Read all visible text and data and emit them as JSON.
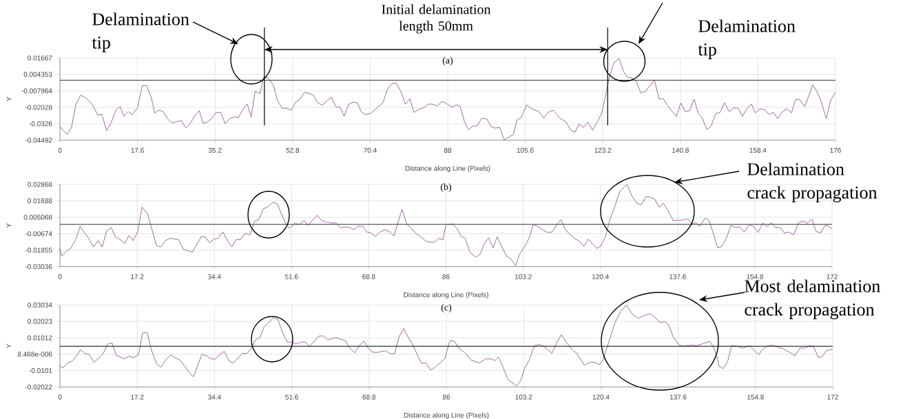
{
  "chart_data": [
    {
      "type": "line",
      "title": "(a)",
      "xlabel": "Distance along Line (Pixels)",
      "ylabel": "Y",
      "xlim": [
        0,
        176
      ],
      "ylim": [
        -0.04492,
        0.01667
      ],
      "xticks": [
        0,
        17.6,
        35.2,
        52.8,
        70.4,
        88,
        105.6,
        123.2,
        140.8,
        158.4,
        176
      ],
      "yticks": [
        -0.04492,
        -0.0326,
        -0.02028,
        -0.007964,
        0.004353,
        0.01667
      ],
      "grid": true,
      "series": [
        {
          "color": "#9e6a9e",
          "x": [
            0,
            1.6,
            2.6,
            3.6,
            4.7,
            5.9,
            7.2,
            8.6,
            9.5,
            10.6,
            11.6,
            12.7,
            13.7,
            14.5,
            15.5,
            16.4,
            17.6,
            18.7,
            19.7,
            20.7,
            21.5,
            22.5,
            23.5,
            24.4,
            25.4,
            26.6,
            27.5,
            28.6,
            29.5,
            30.6,
            31.6,
            32.5,
            33.4,
            34.4,
            35.5,
            36.5,
            37.5,
            38.5,
            39.8,
            40.5,
            41.4,
            42.5,
            43.4,
            44.3,
            45.4,
            46.3,
            47.3,
            48.4,
            49.4,
            50.5,
            51.5,
            52.5,
            53.5,
            54.4,
            55.5,
            56.6,
            57.5,
            58.5,
            59.5,
            60.6,
            61.6,
            62.6,
            63.6,
            64.5,
            65.5,
            66.6,
            67.5,
            68.4,
            69.4,
            70.4,
            71.4,
            72.4,
            73.3,
            74.3,
            75.3,
            76.3,
            77.4,
            78.4,
            79.4,
            80.3,
            81.5,
            82.7,
            83.8,
            84.7,
            85.7,
            86.6,
            87.5,
            89.0,
            90.0,
            90.8,
            91.8,
            92.7,
            93.8,
            94.7,
            95.7,
            96.9,
            97.8,
            98.8,
            99.8,
            100.8,
            101.8,
            102.9,
            103.7,
            104.7,
            105.9,
            107.0,
            108.7,
            109.8,
            110.8,
            111.9,
            113.4,
            114.8,
            115.9,
            116.9,
            117.8,
            118.8,
            119.8,
            120.9,
            122.0,
            122.9,
            123.7,
            124.6,
            125.7,
            126.9,
            127.9,
            128.8,
            129.8,
            130.8,
            131.8,
            132.9,
            133.9,
            134.9,
            136.0,
            136.9,
            137.8,
            138.8,
            139.9,
            140.9,
            141.9,
            142.9,
            143.9,
            144.9,
            145.7,
            146.8,
            147.8,
            148.8,
            149.8,
            150.8,
            151.9,
            152.9,
            153.9,
            154.9,
            155.9,
            156.9,
            157.8,
            158.8,
            159.9,
            160.9,
            161.9,
            162.9,
            163.9,
            165.0,
            166.0,
            167.0,
            168.0,
            169.0,
            170.0,
            170.8,
            171.8,
            172.8,
            173.9,
            174.9,
            176
          ],
          "values": [
            -0.0348,
            -0.0406,
            -0.0357,
            -0.0185,
            -0.0112,
            -0.0134,
            -0.0174,
            -0.0262,
            -0.0254,
            -0.0378,
            -0.0318,
            -0.0224,
            -0.0198,
            -0.0271,
            -0.0235,
            -0.0258,
            -0.0207,
            -0.0041,
            -0.0041,
            -0.0127,
            -0.0245,
            -0.0224,
            -0.0237,
            -0.0288,
            -0.0318,
            -0.031,
            -0.0301,
            -0.0357,
            -0.0327,
            -0.0267,
            -0.0228,
            -0.0323,
            -0.0314,
            -0.0288,
            -0.0241,
            -0.0241,
            -0.0327,
            -0.0288,
            -0.0273,
            -0.028,
            -0.0224,
            -0.0177,
            -0.0277,
            -0.0084,
            -0.0099,
            0.0029,
            0.0012,
            -0.0035,
            -0.0155,
            -0.0213,
            -0.0209,
            -0.0224,
            -0.0164,
            -0.0144,
            -0.0091,
            -0.0099,
            -0.0112,
            -0.017,
            -0.0187,
            -0.0153,
            -0.0127,
            -0.0198,
            -0.0203,
            -0.0271,
            -0.0181,
            -0.0164,
            -0.017,
            -0.0237,
            -0.0258,
            -0.025,
            -0.0224,
            -0.0194,
            -0.0168,
            -0.0069,
            -0.0026,
            -0.0022,
            -0.0086,
            -0.0181,
            -0.0138,
            -0.0241,
            -0.0219,
            -0.0203,
            -0.0177,
            -0.0181,
            -0.0194,
            -0.0159,
            -0.017,
            -0.0203,
            -0.0185,
            -0.0194,
            -0.031,
            -0.037,
            -0.0342,
            -0.0342,
            -0.0284,
            -0.0292,
            -0.0346,
            -0.0359,
            -0.0353,
            -0.0445,
            -0.0428,
            -0.0406,
            -0.0299,
            -0.0278,
            -0.0185,
            -0.0213,
            -0.0235,
            -0.0284,
            -0.0241,
            -0.0224,
            -0.0284,
            -0.031,
            -0.0374,
            -0.0389,
            -0.0327,
            -0.0353,
            -0.0314,
            -0.0374,
            -0.031,
            -0.025,
            -0.0138,
            0.0012,
            0.013,
            0.0163,
            0.0066,
            0.0023,
            0.0017,
            -0.0009,
            -0.0095,
            -0.0084,
            -0.0041,
            0.0001,
            -0.0142,
            -0.0138,
            -0.0185,
            -0.0228,
            -0.0271,
            -0.017,
            -0.0235,
            -0.0228,
            -0.0142,
            -0.025,
            -0.0278,
            -0.037,
            -0.0342,
            -0.025,
            -0.0241,
            -0.017,
            -0.0235,
            -0.0207,
            -0.0209,
            -0.0271,
            -0.0213,
            -0.0177,
            -0.0245,
            -0.0215,
            -0.022,
            -0.0256,
            -0.0241,
            -0.0288,
            -0.0237,
            -0.0213,
            -0.0245,
            -0.0142,
            -0.0149,
            -0.0198,
            -0.0112,
            -0.0035,
            -0.0084,
            -0.0164,
            -0.0288,
            -0.0149,
            -0.0091
          ]
        }
      ],
      "ref_lines": [
        {
          "axis": "y",
          "value": 0,
          "color": "#555555"
        },
        {
          "axis": "x",
          "value": 46.4,
          "color": "#000000"
        },
        {
          "axis": "x",
          "value": 124.3,
          "color": "#000000"
        }
      ],
      "annotations": [
        "Delamination tip",
        "Delamination tip",
        "Initial delamination length 50mm"
      ]
    },
    {
      "type": "line",
      "title": "(b)",
      "xlabel": "Distance along Line (Pixels)",
      "ylabel": "Y",
      "xlim": [
        0,
        172
      ],
      "ylim": [
        -0.03036,
        0.02868
      ],
      "xticks": [
        0,
        17.2,
        34.4,
        51.6,
        68.8,
        86,
        103.2,
        120.4,
        137.6,
        154.8,
        172
      ],
      "yticks": [
        -0.03036,
        -0.01855,
        -0.00674,
        0.005068,
        0.01688,
        0.02868
      ],
      "grid": true,
      "series": [
        {
          "color": "#9e6a9e",
          "x": [
            0,
            0.4,
            1.4,
            2.4,
            3.5,
            4.5,
            5.4,
            6.2,
            7.5,
            8.5,
            9.4,
            10.4,
            11.4,
            12.4,
            13.5,
            14.4,
            15.4,
            16.3,
            17.3,
            18.3,
            19.5,
            20.5,
            21.5,
            22.4,
            23.5,
            24.5,
            25.4,
            26.4,
            27.5,
            28.4,
            29.5,
            30.6,
            31.5,
            32.4,
            33.3,
            34.4,
            35.2,
            36.3,
            37.3,
            38.3,
            39.2,
            40.2,
            41.3,
            42.3,
            43.4,
            44.3,
            45.3,
            46.4,
            47.4,
            48.4,
            49.3,
            50.4,
            51.2,
            52.3,
            53.3,
            54.4,
            55.3,
            56.4,
            57.3,
            58.4,
            59.6,
            60.7,
            61.5,
            62.6,
            63.5,
            64.5,
            65.5,
            66.4,
            67.4,
            68.4,
            69.3,
            70.3,
            71.4,
            72.4,
            73.5,
            74.4,
            76.2,
            77.3,
            78.3,
            79.2,
            80.4,
            81.5,
            82.4,
            83.4,
            84.4,
            85.3,
            86.0,
            87.5,
            88.4,
            89.4,
            90.3,
            91.3,
            92.6,
            93.6,
            94.5,
            95.5,
            96.5,
            97.4,
            98.4,
            99.5,
            100.5,
            101.5,
            102.4,
            103.5,
            104.5,
            105.4,
            106.4,
            107.7,
            108.7,
            109.6,
            110.6,
            111.6,
            112.5,
            113.5,
            114.6,
            115.7,
            116.7,
            117.7,
            118.7,
            119.6,
            120.4,
            121.5,
            122.5,
            123.6,
            124.7,
            126.3,
            127.5,
            128.6,
            129.5,
            130.6,
            131.6,
            132.5,
            133.5,
            134.4,
            135.5,
            136.6,
            137.6,
            138.7,
            139.8,
            140.8,
            141.6,
            142.5,
            143.7,
            144.5,
            145.5,
            146.5,
            147.4,
            148.3,
            149.5,
            150.5,
            151.4,
            152.4,
            153.6,
            154.5,
            155.5,
            156.6,
            157.5,
            158.5,
            159.4,
            160.4,
            161.4,
            162.3,
            163.4,
            164.6,
            165.7,
            166.5,
            167.5,
            168.4,
            169.4,
            170.6,
            172.0
          ],
          "values": [
            -0.0173,
            -0.0229,
            -0.0194,
            -0.0173,
            -0.0111,
            -0.0014,
            -0.0059,
            -0.009,
            -0.0163,
            -0.0117,
            -0.0163,
            -0.0049,
            -0.0022,
            -0.0092,
            -0.0111,
            -0.0138,
            -0.008,
            -0.0117,
            -0.0055,
            0.0123,
            0.0076,
            -0.0038,
            -0.0152,
            -0.0163,
            -0.0117,
            -0.0101,
            -0.0105,
            -0.0109,
            -0.0179,
            -0.0188,
            -0.02,
            -0.0138,
            -0.0088,
            -0.009,
            -0.0132,
            -0.0105,
            -0.0101,
            -0.0055,
            -0.0117,
            -0.0163,
            -0.0111,
            -0.0109,
            -0.0065,
            -0.0076,
            0.0024,
            0.0034,
            0.0111,
            0.0127,
            0.0158,
            0.0148,
            0.0076,
            -0.0001,
            -0.0028,
            0.0007,
            -0.0001,
            0.0028,
            -0.0009,
            0.0034,
            0.0065,
            0.0024,
            0.0015,
            0.0009,
            0.0011,
            -0.0028,
            -0.0018,
            -0.0022,
            -0.0038,
            -0.0014,
            -0.0014,
            -0.0055,
            -0.0063,
            -0.0086,
            -0.0055,
            -0.0038,
            -0.0055,
            -0.0084,
            0.0107,
            -0.0001,
            -0.0028,
            -0.0063,
            -0.009,
            -0.0121,
            -0.0128,
            -0.0128,
            -0.0101,
            -0.0111,
            -0.0003,
            0.0003,
            -0.0028,
            -0.0086,
            -0.0101,
            -0.02,
            -0.0235,
            -0.0215,
            -0.0142,
            -0.0096,
            -0.0169,
            -0.009,
            -0.0159,
            -0.0229,
            -0.025,
            -0.0297,
            -0.0215,
            -0.0159,
            -0.0101,
            -0.0003,
            -0.0014,
            -0.0043,
            -0.0059,
            -0.0055,
            -0.0007,
            0.0034,
            -0.0034,
            -0.007,
            -0.0101,
            -0.0121,
            -0.0159,
            -0.0107,
            -0.0142,
            -0.0173,
            -0.0159,
            -0.009,
            0.0034,
            0.0127,
            0.0235,
            0.0286,
            0.02,
            0.0148,
            0.0142,
            0.02,
            0.0194,
            0.0179,
            0.0123,
            0.0152,
            0.0096,
            0.0028,
            0.0028,
            0.003,
            0.004,
            0.0003,
            0.0013,
            -0.0014,
            0.0044,
            0.0034,
            -0.0059,
            -0.0169,
            -0.0159,
            -0.0111,
            -0.0007,
            -0.0024,
            -0.0018,
            -0.0055,
            -0.0003,
            -0.0014,
            -0.0059,
            0.0009,
            -0.0018,
            0.0013,
            -0.0024,
            -0.0022,
            -0.0063,
            -0.0055,
            -0.0076,
            0.0013,
            0.0024,
            0.0007,
            0.0038,
            -0.0049,
            -0.0063,
            -0.0003,
            -0.003
          ]
        }
      ],
      "ref_lines": [
        {
          "axis": "y",
          "value": 0,
          "color": "#555555"
        }
      ],
      "annotations": [
        "Delamination crack propagation"
      ]
    },
    {
      "type": "line",
      "title": "(c)",
      "xlabel": "Distance along Line (Pixels)",
      "ylabel": "Y",
      "xlim": [
        0,
        172
      ],
      "ylim": [
        -0.02022,
        0.03034
      ],
      "xticks": [
        0,
        17.2,
        34.4,
        51.6,
        68.8,
        86,
        103.2,
        120.4,
        137.6,
        154.8,
        172
      ],
      "yticks": [
        -0.02022,
        -0.0101,
        {
          "value": 8.468e-06,
          "label": "8.468e-006"
        },
        0.01012,
        0.02023,
        0.03034
      ],
      "grid": true,
      "series": [
        {
          "color": "#9e6a9e",
          "x": [
            0,
            0.6,
            1.6,
            2.6,
            3.5,
            4.6,
            5.6,
            6.5,
            7.6,
            8.7,
            9.6,
            10.6,
            11.6,
            12.5,
            13.5,
            14.4,
            15.4,
            16.4,
            17.5,
            18.4,
            19.4,
            20.3,
            21.5,
            22.5,
            23.6,
            24.7,
            25.7,
            26.7,
            27.7,
            28.7,
            29.7,
            30.7,
            31.6,
            32.6,
            33.6,
            34.5,
            35.6,
            36.6,
            37.7,
            38.6,
            39.7,
            40.6,
            41.6,
            42.6,
            43.5,
            44.5,
            45.4,
            46.4,
            47.5,
            48.5,
            49.6,
            50.6,
            51.6,
            52.6,
            53.6,
            54.6,
            55.5,
            56.6,
            57.6,
            58.5,
            59.6,
            60.5,
            61.5,
            62.6,
            63.5,
            64.5,
            65.6,
            66.6,
            67.6,
            68.7,
            69.6,
            70.6,
            71.6,
            72.5,
            73.5,
            74.5,
            75.5,
            76.5,
            77.5,
            78.5,
            79.5,
            80.4,
            81.5,
            82.5,
            83.6,
            84.6,
            85.7,
            86.6,
            86.9,
            87.8,
            88.9,
            90.2,
            91.5,
            93.4,
            94.7,
            96.0,
            96.8,
            97.6,
            98.6,
            99.7,
            101.7,
            102.6,
            103.4,
            104.5,
            105.6,
            106.8,
            107.9,
            109.5,
            110.5,
            111.6,
            112.7,
            113.9,
            115.0,
            116.7,
            117.9,
            119.0,
            120.1,
            120.9,
            122.2,
            123.6,
            124.8,
            126.1,
            127.4,
            128.7,
            129.9,
            131.4,
            132.5,
            133.6,
            134.6,
            135.5,
            136.5,
            137.5,
            138.4,
            139.7,
            140.7,
            141.7,
            142.9,
            144.6,
            145.5,
            146.2,
            146.7,
            147.6,
            148.6,
            149.5,
            150.7,
            151.9,
            153.6,
            154.5,
            155.5,
            156.4,
            157.4,
            158.4,
            159.7,
            160.9,
            162.6,
            163.6,
            164.7,
            165.8,
            166.9,
            167.7,
            168.8,
            169.6,
            170.6,
            172.0
          ],
          "values": [
            -0.0071,
            -0.0086,
            -0.0057,
            -0.0045,
            -0.0018,
            0.0028,
            0.0003,
            -0.0001,
            -0.005,
            -0.0022,
            0.0003,
            0.0061,
            0.007,
            -0.0006,
            -0.0018,
            -0.0029,
            -0.0011,
            -0.0022,
            -0.0001,
            0.0132,
            0.0134,
            0.0031,
            -0.0059,
            -0.008,
            -0.0032,
            -0.0004,
            -0.0022,
            -0.0036,
            -0.0071,
            -0.011,
            -0.0139,
            -0.0068,
            -0.0001,
            -0.0009,
            -0.0027,
            -0.0032,
            -0.0001,
            0.0017,
            -0.0043,
            -0.0054,
            -0.0022,
            0.0006,
            0.0003,
            0.0038,
            0.0088,
            0.0102,
            0.0167,
            0.0194,
            0.0224,
            0.0215,
            0.013,
            0.0075,
            0.0074,
            0.0063,
            0.0075,
            0.0075,
            0.0049,
            0.0079,
            0.0111,
            0.0114,
            0.0088,
            0.0095,
            0.0102,
            0.0091,
            0.0084,
            0.0038,
            0.0008,
            0.0052,
            0.0081,
            0.0035,
            0.0013,
            0.001,
            0.0017,
            0.0021,
            0.0003,
            0.0003,
            0.0109,
            0.0158,
            0.0105,
            0.006,
            -0.0001,
            -0.0054,
            -0.0054,
            -0.0098,
            -0.0078,
            -0.0054,
            -0.0025,
            0.0067,
            0.0084,
            0.0079,
            0.0035,
            0.0008,
            -0.0036,
            -0.0054,
            -0.0029,
            -0.0029,
            -0.004,
            -0.0018,
            -0.008,
            -0.0156,
            -0.0195,
            -0.016,
            -0.0089,
            -0.0032,
            0.0052,
            0.006,
            0.0044,
            0.0005,
            0.0067,
            0.012,
            0.0074,
            0.0031,
            0.0006,
            -0.0068,
            -0.005,
            -0.005,
            -0.0066,
            -0.0036,
            0.0079,
            0.0197,
            0.0265,
            0.0303,
            0.0247,
            0.022,
            0.0238,
            0.025,
            0.0226,
            0.0194,
            0.0201,
            0.018,
            0.0105,
            0.0067,
            0.0049,
            0.0052,
            0.0056,
            0.0052,
            0.0063,
            0.0079,
            0.0044,
            -0.0018,
            -0.0071,
            -0.0089,
            -0.0045,
            0.0052,
            0.0049,
            0.0038,
            0.0052,
            0.0026,
            -0.0004,
            0.0031,
            0.0049,
            0.0056,
            0.0044,
            0.0035,
            0.0008,
            -0.0009,
            0.0038,
            0.0038,
            0.0052,
            0.0049,
            -0.002,
            -0.0015,
            0.0021,
            0.0031
          ]
        }
      ],
      "ref_lines": [
        {
          "axis": "y",
          "value": 0.0049,
          "color": "#000000"
        }
      ],
      "annotations": [
        "Most delamination crack propagation"
      ]
    }
  ]
}
